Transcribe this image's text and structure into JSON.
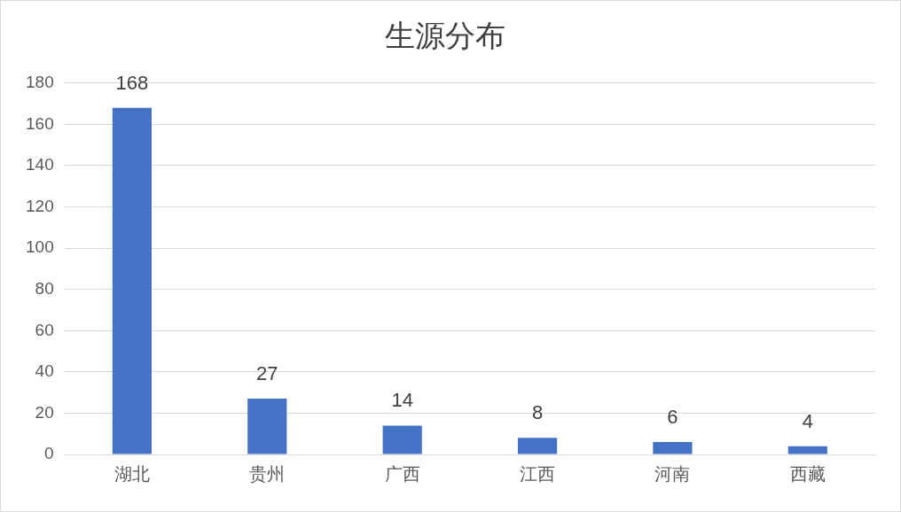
{
  "chart_data": {
    "type": "bar",
    "title": "生源分布",
    "categories": [
      "湖北",
      "贵州",
      "广西",
      "江西",
      "河南",
      "西藏"
    ],
    "values": [
      168,
      27,
      14,
      8,
      6,
      4
    ],
    "color": "#4472c4",
    "ylim": [
      0,
      180
    ],
    "yticks": [
      0,
      20,
      40,
      60,
      80,
      100,
      120,
      140,
      160,
      180
    ],
    "grid": "y",
    "data_labels": true,
    "legend": false
  }
}
